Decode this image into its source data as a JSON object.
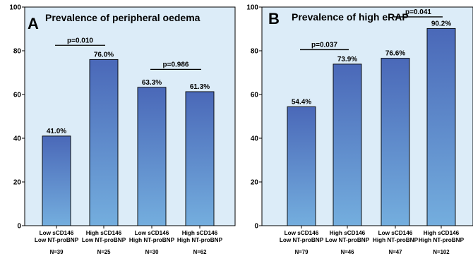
{
  "chart_data": [
    {
      "type": "bar",
      "panel_letter": "A",
      "title": "Prevalence of peripheral oedema",
      "categories": [
        [
          "Low sCD146",
          "Low NT-proBNP"
        ],
        [
          "High sCD146",
          "Low NT-proBNP"
        ],
        [
          "Low sCD146",
          "High NT-proBNP"
        ],
        [
          "High sCD146",
          "High NT-proBNP"
        ]
      ],
      "n_labels": [
        "N=39",
        "N=25",
        "N=30",
        "N=62"
      ],
      "values": [
        41.0,
        76.0,
        63.3,
        61.3
      ],
      "value_labels": [
        "41.0%",
        "76.0%",
        "63.3%",
        "61.3%"
      ],
      "ylim": [
        0,
        100
      ],
      "yticks": [
        0,
        20,
        40,
        60,
        80,
        100
      ],
      "grid": false,
      "comparisons": [
        {
          "from": 0,
          "to": 1,
          "label": "p=0.010",
          "y": 82.5
        },
        {
          "from": 2,
          "to": 3,
          "label": "p=0.986",
          "y": 71.5
        }
      ]
    },
    {
      "type": "bar",
      "panel_letter": "B",
      "title": "Prevalence of high eRAP",
      "categories": [
        [
          "Low sCD146",
          "Low NT-proBNP"
        ],
        [
          "High sCD146",
          "Low NT-proBNP"
        ],
        [
          "Low sCD146",
          "High NT-proBNP"
        ],
        [
          "High sCD146",
          "High NT-proBNP"
        ]
      ],
      "n_labels": [
        "N=79",
        "N=46",
        "N=47",
        "N=102"
      ],
      "values": [
        54.4,
        73.9,
        76.6,
        90.2
      ],
      "value_labels": [
        "54.4%",
        "73.9%",
        "76.6%",
        "90.2%"
      ],
      "ylim": [
        0,
        100
      ],
      "yticks": [
        0,
        20,
        40,
        60,
        80,
        100
      ],
      "grid": false,
      "comparisons": [
        {
          "from": 0,
          "to": 1,
          "label": "p=0.037",
          "y": 80.5
        },
        {
          "from": 2,
          "to": 3,
          "label": "p=0.041",
          "y": 95.5
        }
      ]
    }
  ],
  "colors": {
    "plot_background": "#dcecf8",
    "bar_top": "#4a68b8",
    "bar_bottom": "#74aede",
    "axis": "#000000"
  }
}
